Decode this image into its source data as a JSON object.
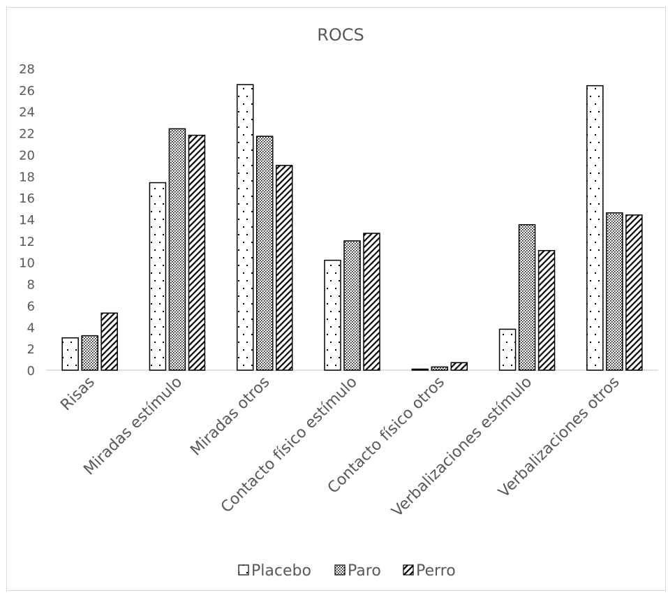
{
  "chart_data": {
    "type": "bar",
    "title": "ROCS",
    "xlabel": "",
    "ylabel": "",
    "ylim": [
      0,
      28
    ],
    "y_ticks": [
      "0",
      "2",
      "4",
      "6",
      "8",
      "10",
      "12",
      "14",
      "16",
      "18",
      "20",
      "22",
      "24",
      "26",
      "28"
    ],
    "grid": false,
    "legend_position": "bottom",
    "categories": [
      "Risas",
      "Miradas estímulo",
      "Miradas otros",
      "Contacto físico estímulo",
      "Contacto físico otros",
      "Verbalizaciones estímulo",
      "Verbalizaciones otros"
    ],
    "series": [
      {
        "name": "Placebo",
        "pattern": "dots",
        "values": [
          3.0,
          17.4,
          26.5,
          10.2,
          0.1,
          3.8,
          26.4
        ]
      },
      {
        "name": "Paro",
        "pattern": "dense-dots",
        "values": [
          3.2,
          22.4,
          21.7,
          12.0,
          0.3,
          13.5,
          14.6
        ]
      },
      {
        "name": "Perro",
        "pattern": "diagonal-lines",
        "values": [
          5.3,
          21.8,
          19.0,
          12.7,
          0.7,
          11.1,
          14.4
        ]
      }
    ],
    "colors": {
      "bar_outline": "#000000",
      "bar_fill": "#ffffff",
      "text": "#595959",
      "axis": "#d9d9d9"
    }
  }
}
